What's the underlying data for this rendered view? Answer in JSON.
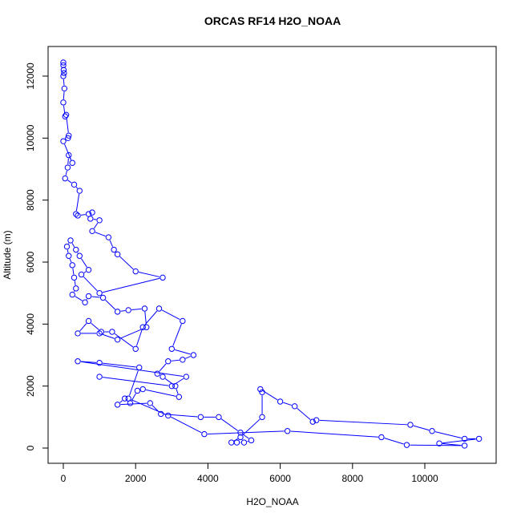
{
  "chart_data": {
    "type": "line",
    "title": "ORCAS RF14 H2O_NOAA",
    "x_label": "H2O_NOAA",
    "y_label": "Altitude (m)",
    "color": "#0000ff",
    "xlim": [
      -421,
      11973
    ],
    "ylim": [
      -491,
      12956
    ],
    "xticks": [
      0,
      2000,
      4000,
      6000,
      8000,
      10000
    ],
    "yticks": [
      0,
      2000,
      4000,
      6000,
      8000,
      10000,
      12000
    ],
    "x": [
      0,
      0,
      10,
      20,
      0,
      30,
      0,
      50,
      80,
      150,
      130,
      0,
      250,
      150,
      120,
      50,
      300,
      450,
      350,
      400,
      700,
      800,
      750,
      1000,
      800,
      1250,
      1400,
      1500,
      2000,
      2750,
      1000,
      500,
      700,
      450,
      350,
      200,
      100,
      150,
      250,
      300,
      350,
      250,
      600,
      700,
      1100,
      1500,
      1800,
      2250,
      2300,
      1500,
      1000,
      400,
      700,
      1050,
      1350,
      2000,
      2200,
      2650,
      3300,
      3000,
      3600,
      3300,
      2900,
      2600,
      2750,
      3100,
      3200,
      2200,
      2050,
      1850,
      1700,
      1500,
      2400,
      2700,
      3800,
      4300,
      4900,
      5200,
      5000,
      4800,
      4650,
      4900,
      5500,
      5500,
      5450,
      6000,
      6400,
      6900,
      7000,
      9600,
      10200,
      11100,
      11500,
      10400,
      11100,
      9500,
      8800,
      6200,
      3900,
      2900,
      1800,
      2100,
      1000,
      400,
      3400,
      3000,
      1000
    ],
    "y": [
      12440,
      12350,
      12200,
      12100,
      12000,
      11600,
      11150,
      10700,
      10750,
      10080,
      10000,
      9900,
      9200,
      9450,
      9050,
      8700,
      8500,
      8300,
      7550,
      7500,
      7550,
      7600,
      7400,
      7350,
      7000,
      6800,
      6400,
      6250,
      5700,
      5500,
      5000,
      5600,
      5750,
      6200,
      6400,
      6700,
      6500,
      6200,
      5900,
      5500,
      5150,
      4950,
      4700,
      4900,
      4850,
      4400,
      4450,
      4500,
      3900,
      3500,
      3700,
      3700,
      4100,
      3750,
      3750,
      3200,
      3900,
      4500,
      4100,
      3200,
      3000,
      2850,
      2800,
      2400,
      2300,
      2000,
      1650,
      1900,
      1850,
      1450,
      1600,
      1400,
      1450,
      1100,
      1000,
      1000,
      500,
      250,
      180,
      180,
      180,
      350,
      1000,
      1800,
      1900,
      1500,
      1350,
      850,
      900,
      750,
      550,
      300,
      300,
      150,
      80,
      100,
      350,
      550,
      450,
      1050,
      1600,
      2600,
      2750,
      2800,
      2300,
      2000,
      2300
    ]
  }
}
